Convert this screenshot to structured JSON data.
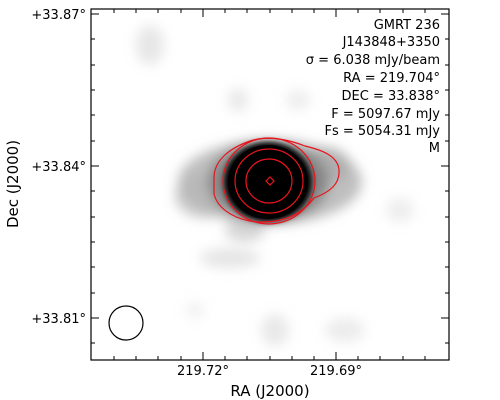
{
  "plot": {
    "x_axis_title": "RA (J2000)",
    "y_axis_title": "Dec (J2000)",
    "x_ticks": [
      {
        "label": "219.72°",
        "value": 219.72
      },
      {
        "label": "219.69°",
        "value": 219.69
      }
    ],
    "y_ticks": [
      {
        "label": "+33.87°",
        "value": 33.87
      },
      {
        "label": "+33.84°",
        "value": 33.84
      },
      {
        "label": "+33.81°",
        "value": 33.81
      }
    ]
  },
  "info": {
    "survey": "GMRT 236",
    "source": "J143848+3350",
    "sigma_label": "σ = 6.038 mJy/beam",
    "ra": "RA = 219.704°",
    "dec": "DEC = 33.838°",
    "flux": "F = 5097.67 mJy",
    "flux_s": "Fs = 5054.31 mJy",
    "flag": "M"
  },
  "colors": {
    "contour": "#e8141c",
    "core": "#000000",
    "frame": "#000000"
  }
}
